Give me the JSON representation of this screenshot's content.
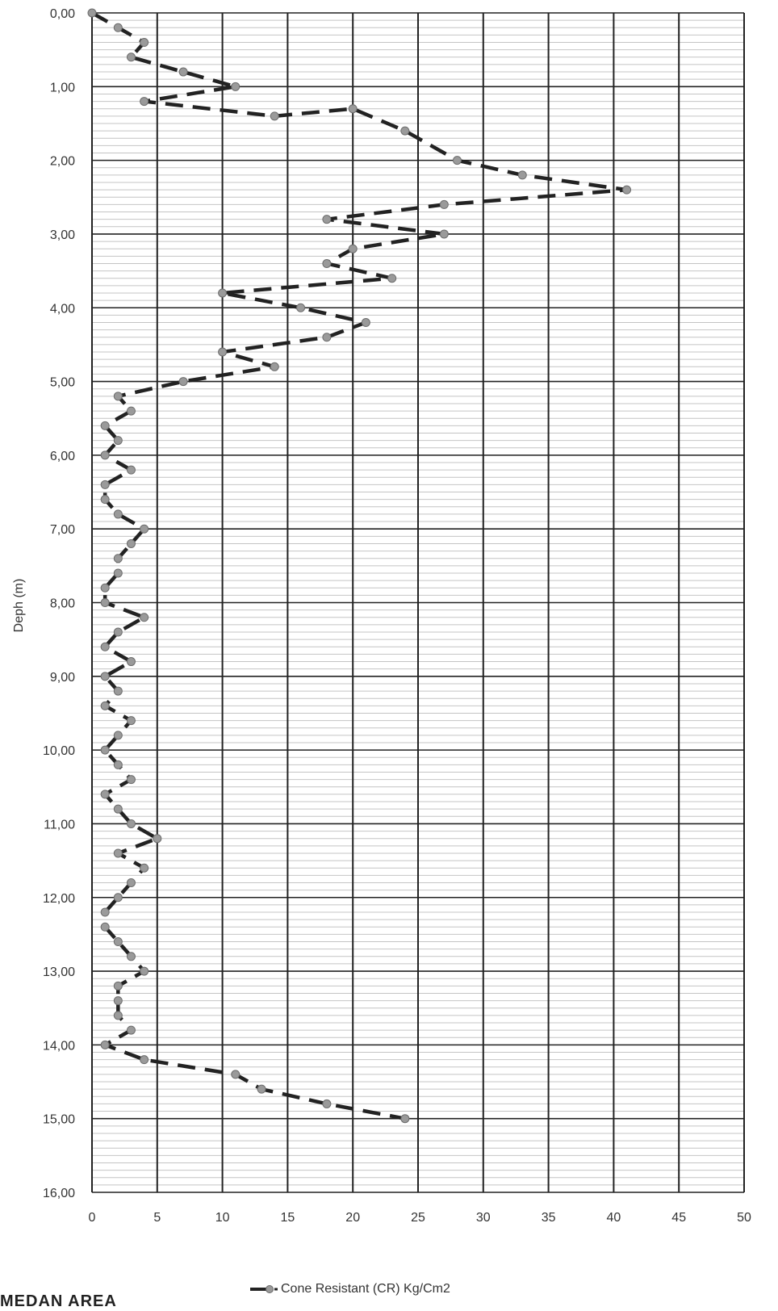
{
  "chart_data": {
    "type": "line",
    "title": "",
    "ylabel": "Deph (m)",
    "xlabel": "",
    "xlim": [
      0,
      50
    ],
    "ylim": [
      0,
      16
    ],
    "y_inverted": true,
    "grid": true,
    "x_ticks": [
      "0",
      "5",
      "10",
      "15",
      "20",
      "25",
      "30",
      "35",
      "40",
      "45",
      "50"
    ],
    "y_ticks": [
      "0,00",
      "1,00",
      "2,00",
      "3,00",
      "4,00",
      "5,00",
      "6,00",
      "7,00",
      "8,00",
      "9,00",
      "10,00",
      "11,00",
      "12,00",
      "13,00",
      "14,00",
      "15,00",
      "16,00"
    ],
    "legend_position": "bottom-center",
    "series": [
      {
        "name": "Cone Resistant (CR) Kg/Cm2",
        "color": "#222222",
        "marker_color": "#9a9a9a",
        "points": [
          {
            "x": 0,
            "y": 0.0
          },
          {
            "x": 2,
            "y": 0.2
          },
          {
            "x": 4,
            "y": 0.4
          },
          {
            "x": 3,
            "y": 0.6
          },
          {
            "x": 7,
            "y": 0.8
          },
          {
            "x": 11,
            "y": 1.0
          },
          {
            "x": 4,
            "y": 1.2
          },
          {
            "x": 14,
            "y": 1.4
          },
          {
            "x": 20,
            "y": 1.3
          },
          {
            "x": 24,
            "y": 1.6
          },
          {
            "x": 28,
            "y": 2.0
          },
          {
            "x": 33,
            "y": 2.2
          },
          {
            "x": 41,
            "y": 2.4
          },
          {
            "x": 27,
            "y": 2.6
          },
          {
            "x": 18,
            "y": 2.8
          },
          {
            "x": 27,
            "y": 3.0
          },
          {
            "x": 20,
            "y": 3.2
          },
          {
            "x": 18,
            "y": 3.4
          },
          {
            "x": 23,
            "y": 3.6
          },
          {
            "x": 10,
            "y": 3.8
          },
          {
            "x": 16,
            "y": 4.0
          },
          {
            "x": 21,
            "y": 4.2
          },
          {
            "x": 18,
            "y": 4.4
          },
          {
            "x": 10,
            "y": 4.6
          },
          {
            "x": 14,
            "y": 4.8
          },
          {
            "x": 7,
            "y": 5.0
          },
          {
            "x": 2,
            "y": 5.2
          },
          {
            "x": 3,
            "y": 5.4
          },
          {
            "x": 1,
            "y": 5.6
          },
          {
            "x": 2,
            "y": 5.8
          },
          {
            "x": 1,
            "y": 6.0
          },
          {
            "x": 3,
            "y": 6.2
          },
          {
            "x": 1,
            "y": 6.4
          },
          {
            "x": 1,
            "y": 6.6
          },
          {
            "x": 2,
            "y": 6.8
          },
          {
            "x": 4,
            "y": 7.0
          },
          {
            "x": 3,
            "y": 7.2
          },
          {
            "x": 2,
            "y": 7.4
          },
          {
            "x": 2,
            "y": 7.6
          },
          {
            "x": 1,
            "y": 7.8
          },
          {
            "x": 1,
            "y": 8.0
          },
          {
            "x": 4,
            "y": 8.2
          },
          {
            "x": 2,
            "y": 8.4
          },
          {
            "x": 1,
            "y": 8.6
          },
          {
            "x": 3,
            "y": 8.8
          },
          {
            "x": 1,
            "y": 9.0
          },
          {
            "x": 2,
            "y": 9.2
          },
          {
            "x": 1,
            "y": 9.4
          },
          {
            "x": 3,
            "y": 9.6
          },
          {
            "x": 2,
            "y": 9.8
          },
          {
            "x": 1,
            "y": 10.0
          },
          {
            "x": 2,
            "y": 10.2
          },
          {
            "x": 3,
            "y": 10.4
          },
          {
            "x": 1,
            "y": 10.6
          },
          {
            "x": 2,
            "y": 10.8
          },
          {
            "x": 3,
            "y": 11.0
          },
          {
            "x": 5,
            "y": 11.2
          },
          {
            "x": 2,
            "y": 11.4
          },
          {
            "x": 4,
            "y": 11.6
          },
          {
            "x": 3,
            "y": 11.8
          },
          {
            "x": 2,
            "y": 12.0
          },
          {
            "x": 1,
            "y": 12.2
          },
          {
            "x": 1,
            "y": 12.4
          },
          {
            "x": 2,
            "y": 12.6
          },
          {
            "x": 3,
            "y": 12.8
          },
          {
            "x": 4,
            "y": 13.0
          },
          {
            "x": 2,
            "y": 13.2
          },
          {
            "x": 2,
            "y": 13.4
          },
          {
            "x": 2,
            "y": 13.6
          },
          {
            "x": 3,
            "y": 13.8
          },
          {
            "x": 1,
            "y": 14.0
          },
          {
            "x": 4,
            "y": 14.2
          },
          {
            "x": 11,
            "y": 14.4
          },
          {
            "x": 13,
            "y": 14.6
          },
          {
            "x": 18,
            "y": 14.8
          },
          {
            "x": 24,
            "y": 15.0
          }
        ]
      }
    ]
  },
  "footer": {
    "text": "MEDAN AREA"
  }
}
